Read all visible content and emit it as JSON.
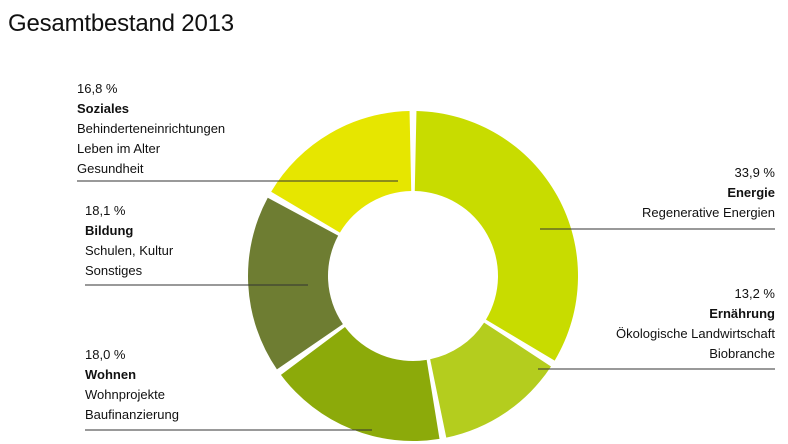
{
  "chart_data": {
    "type": "pie",
    "title": "Gesamtbestand 2013",
    "slices": [
      {
        "name": "Energie",
        "value": 33.9,
        "value_label": "33,9 %",
        "color": "#c8dc00",
        "items": [
          "Regenerative Energien"
        ]
      },
      {
        "name": "Ernährung",
        "value": 13.2,
        "value_label": "13,2 %",
        "color": "#b4cd1e",
        "items": [
          "Ökologische Landwirtschaft",
          "Biobranche"
        ]
      },
      {
        "name": "Wohnen",
        "value": 18.0,
        "value_label": "18,0 %",
        "color": "#8caa0a",
        "items": [
          "Wohnprojekte",
          "Baufinanzierung"
        ]
      },
      {
        "name": "Bildung",
        "value": 18.1,
        "value_label": "18,1 %",
        "color": "#6e7d32",
        "items": [
          "Schulen, Kultur",
          "Sonstiges"
        ]
      },
      {
        "name": "Soziales",
        "value": 16.8,
        "value_label": "16,8 %",
        "color": "#e6e600",
        "items": [
          "Behinderteneinrichtungen",
          "Leben im Alter",
          "Gesundheit"
        ]
      }
    ]
  }
}
